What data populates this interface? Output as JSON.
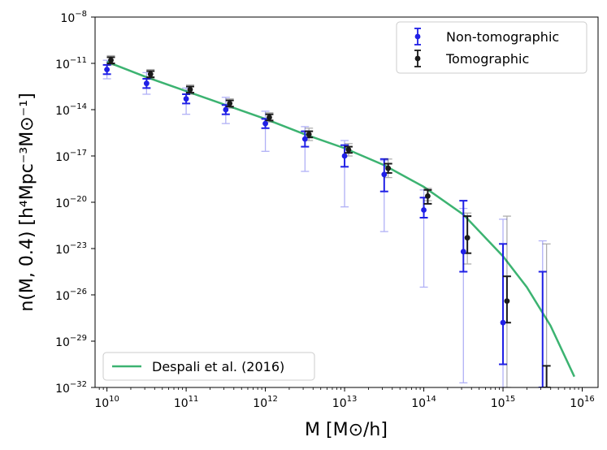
{
  "chart_data": {
    "type": "scatter",
    "title": "",
    "xlabel": "M [M⊙/h]",
    "ylabel": "n(M, 0.4) [h⁴Mpc⁻³M⊙⁻¹]",
    "xscale": "log",
    "yscale": "log",
    "xlim_log10": [
      9.85,
      16.2
    ],
    "ylim_log10": [
      -32,
      -8
    ],
    "x_ticks": [
      {
        "base": "10",
        "exp": "10",
        "log": 10
      },
      {
        "base": "10",
        "exp": "11",
        "log": 11
      },
      {
        "base": "10",
        "exp": "12",
        "log": 12
      },
      {
        "base": "10",
        "exp": "13",
        "log": 13
      },
      {
        "base": "10",
        "exp": "14",
        "log": 14
      },
      {
        "base": "10",
        "exp": "15",
        "log": 15
      },
      {
        "base": "10",
        "exp": "16",
        "log": 16
      }
    ],
    "y_ticks": [
      {
        "base": "10",
        "exp": "−8",
        "log": -8
      },
      {
        "base": "10",
        "exp": "−11",
        "log": -11
      },
      {
        "base": "10",
        "exp": "−14",
        "log": -14
      },
      {
        "base": "10",
        "exp": "−17",
        "log": -17
      },
      {
        "base": "10",
        "exp": "−20",
        "log": -20
      },
      {
        "base": "10",
        "exp": "−23",
        "log": -23
      },
      {
        "base": "10",
        "exp": "−26",
        "log": -26
      },
      {
        "base": "10",
        "exp": "−29",
        "log": -29
      },
      {
        "base": "10",
        "exp": "−32",
        "log": -32
      }
    ],
    "legend": {
      "top_right": [
        {
          "label": "Non-tomographic",
          "color": "#1f1fe6"
        },
        {
          "label": "Tomographic",
          "color": "#1a1a1a"
        }
      ],
      "bottom_left": [
        {
          "label": "Despali et al. (2016)",
          "color": "#3cb371"
        }
      ]
    },
    "series": [
      {
        "name": "Non-tomographic",
        "color": "#1f1fe6",
        "x_log10": [
          10.0,
          10.5,
          11.0,
          11.5,
          12.0,
          12.5,
          13.0,
          13.5,
          14.0,
          14.5,
          15.0
        ],
        "y_log10": [
          -11.4,
          -12.3,
          -13.3,
          -14.0,
          -14.9,
          -15.9,
          -17.0,
          -18.2,
          -20.5,
          -23.2,
          -27.8
        ],
        "inner_err_log10": [
          [
            -11.7,
            -11.1
          ],
          [
            -12.6,
            -12.0
          ],
          [
            -13.6,
            -13.0
          ],
          [
            -14.3,
            -13.7
          ],
          [
            -15.2,
            -14.6
          ],
          [
            -16.4,
            -15.4
          ],
          [
            -17.7,
            -16.3
          ],
          [
            -19.3,
            -17.2
          ],
          [
            -21.0,
            -19.7
          ],
          [
            -24.5,
            -19.9
          ],
          [
            -30.5,
            -22.7
          ],
          [
            -32.0,
            -24.5
          ]
        ],
        "outer_err_log10": [
          [
            -12.0,
            -10.8
          ],
          [
            -13.0,
            -11.6
          ],
          [
            -14.3,
            -12.6
          ],
          [
            -14.9,
            -13.2
          ],
          [
            -16.7,
            -14.1
          ],
          [
            -18.0,
            -15.1
          ],
          [
            -20.3,
            -16.0
          ],
          [
            -21.9,
            -17.3
          ],
          [
            -25.5,
            -19.2
          ],
          [
            -31.7,
            -20.4
          ],
          [
            -32.0,
            -21.1
          ],
          [
            -32.0,
            -22.5
          ]
        ],
        "last_point_x_log10": 15.5
      },
      {
        "name": "Tomographic",
        "color": "#1a1a1a",
        "x_log10": [
          10.05,
          10.55,
          11.05,
          11.55,
          12.05,
          12.55,
          13.05,
          13.55,
          14.05,
          14.55,
          15.05
        ],
        "y_log10": [
          -10.8,
          -11.7,
          -12.7,
          -13.6,
          -14.5,
          -15.6,
          -16.6,
          -17.8,
          -19.6,
          -22.3,
          -26.4
        ],
        "inner_err_log10": [
          [
            -11.0,
            -10.6
          ],
          [
            -11.9,
            -11.5
          ],
          [
            -12.9,
            -12.5
          ],
          [
            -13.8,
            -13.4
          ],
          [
            -14.7,
            -14.3
          ],
          [
            -15.8,
            -15.4
          ],
          [
            -16.8,
            -16.4
          ],
          [
            -18.1,
            -17.5
          ],
          [
            -20.1,
            -19.2
          ],
          [
            -23.3,
            -20.9
          ],
          [
            -27.8,
            -24.8
          ],
          [
            -32.0,
            -30.6
          ]
        ],
        "outer_err_log10": [
          [
            -11.1,
            -10.5
          ],
          [
            -12.0,
            -11.4
          ],
          [
            -13.0,
            -12.4
          ],
          [
            -13.9,
            -13.3
          ],
          [
            -14.8,
            -14.2
          ],
          [
            -16.0,
            -15.2
          ],
          [
            -17.0,
            -16.2
          ],
          [
            -18.4,
            -17.2
          ],
          [
            -19.9,
            -19.1
          ],
          [
            -24.0,
            -20.7
          ],
          [
            -32.0,
            -20.9
          ],
          [
            -32.0,
            -22.7
          ]
        ],
        "last_point_x_log10": 15.55
      }
    ],
    "model_curve": {
      "name": "Despali et al. (2016)",
      "color": "#3cb371",
      "x_log10": [
        10.0,
        10.5,
        11.0,
        11.5,
        12.0,
        12.5,
        13.0,
        13.5,
        14.0,
        14.5,
        15.0,
        15.3,
        15.6,
        15.9
      ],
      "y_log10": [
        -10.9,
        -11.9,
        -12.8,
        -13.7,
        -14.6,
        -15.6,
        -16.5,
        -17.6,
        -19.0,
        -20.8,
        -23.5,
        -25.5,
        -28.0,
        -31.3
      ]
    }
  }
}
